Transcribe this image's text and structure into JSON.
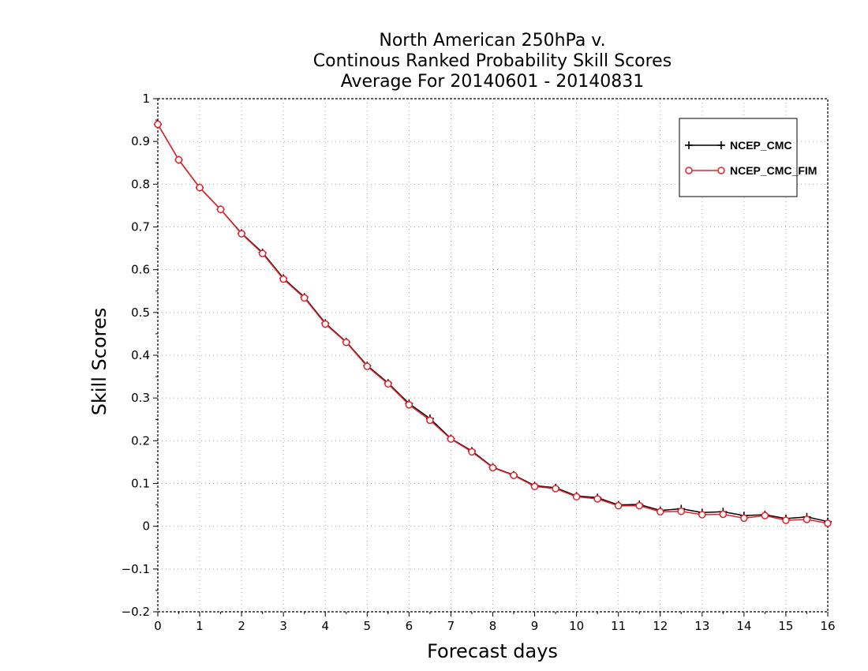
{
  "chart_data": {
    "type": "line",
    "title": [
      "North American 250hPa v.",
      "Continous Ranked Probability Skill Scores",
      "Average For 20140601 - 20140831"
    ],
    "xlabel": "Forecast days",
    "ylabel": "Skill Scores",
    "xlim": [
      0,
      16
    ],
    "ylim": [
      -0.2,
      1
    ],
    "xticks": [
      0,
      1,
      2,
      3,
      4,
      5,
      6,
      7,
      8,
      9,
      10,
      11,
      12,
      13,
      14,
      15,
      16
    ],
    "yticks": [
      -0.2,
      -0.1,
      0,
      0.1,
      0.2,
      0.3,
      0.4,
      0.5,
      0.6,
      0.7,
      0.8,
      0.9,
      1
    ],
    "ytick_labels": [
      "−0.2",
      "−0.1",
      "0",
      "0.1",
      "0.2",
      "0.3",
      "0.4",
      "0.5",
      "0.6",
      "0.7",
      "0.8",
      "0.9",
      "1"
    ],
    "grid": true,
    "legend_position": "top-right",
    "x": [
      0,
      0.5,
      1,
      1.5,
      2,
      2.5,
      3,
      3.5,
      4,
      4.5,
      5,
      5.5,
      6,
      6.5,
      7,
      7.5,
      8,
      8.5,
      9,
      9.5,
      10,
      10.5,
      11,
      11.5,
      12,
      12.5,
      13,
      13.5,
      14,
      14.5,
      15,
      15.5,
      16
    ],
    "series": [
      {
        "name": "NCEP_CMC",
        "color": "#000000",
        "marker": "plus",
        "values": [
          0.94,
          0.857,
          0.792,
          0.741,
          0.685,
          0.64,
          0.58,
          0.536,
          0.475,
          0.431,
          0.376,
          0.335,
          0.287,
          0.252,
          0.205,
          0.176,
          0.138,
          0.12,
          0.095,
          0.09,
          0.071,
          0.067,
          0.05,
          0.051,
          0.037,
          0.041,
          0.032,
          0.034,
          0.025,
          0.027,
          0.018,
          0.022,
          0.011
        ]
      },
      {
        "name": "NCEP_CMC_FIM",
        "color": "#e8202a",
        "marker": "circle",
        "values": [
          0.94,
          0.857,
          0.792,
          0.741,
          0.684,
          0.638,
          0.578,
          0.534,
          0.473,
          0.43,
          0.374,
          0.333,
          0.284,
          0.248,
          0.204,
          0.174,
          0.137,
          0.119,
          0.093,
          0.088,
          0.069,
          0.064,
          0.048,
          0.048,
          0.034,
          0.035,
          0.027,
          0.028,
          0.019,
          0.025,
          0.014,
          0.016,
          0.007
        ]
      }
    ]
  }
}
